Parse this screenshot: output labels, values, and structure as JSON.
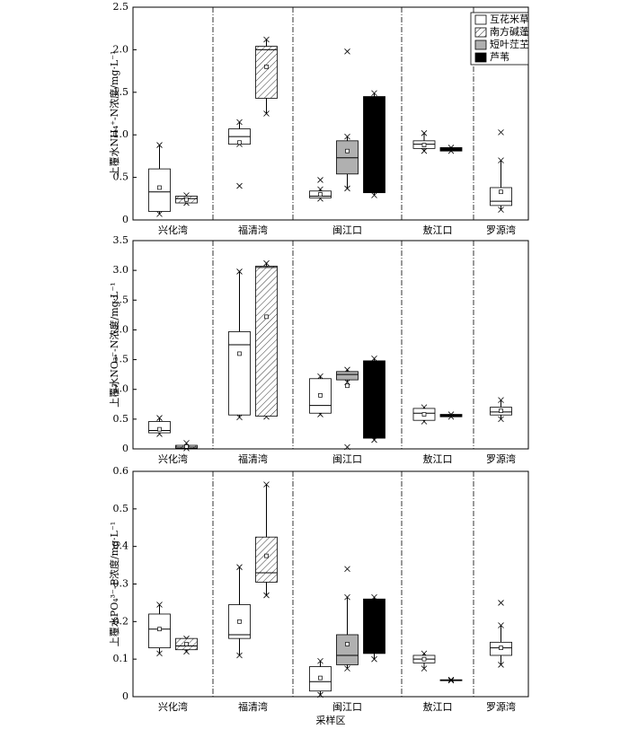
{
  "chart_data": [
    {
      "type": "box",
      "ylabel": "上覆水NH₄⁺-N浓度/mg·L⁻¹",
      "categories": [
        "兴化湾",
        "福清湾",
        "闽江口",
        "敖江口",
        "罗源湾"
      ],
      "ylim": [
        0,
        2.5
      ],
      "yticks": [
        0,
        0.5,
        {
          "value": 1,
          "label": "1.0"
        },
        1.5,
        {
          "value": 2,
          "label": "2.0"
        },
        2.5
      ],
      "legend": "upper right",
      "series": [
        {
          "name": "互花米草",
          "color": "#ffffff",
          "low": [
            0.07,
            0.89,
            0.25,
            0.81,
            0.12
          ],
          "q1": [
            0.1,
            0.89,
            0.26,
            0.84,
            0.17
          ],
          "median": [
            0.33,
            0.98,
            0.28,
            0.89,
            0.22
          ],
          "q3": [
            0.6,
            1.07,
            0.34,
            0.93,
            0.38
          ],
          "high": [
            0.88,
            1.15,
            0.36,
            1.02,
            0.7
          ],
          "mean": [
            0.38,
            0.91,
            0.3,
            0.88,
            0.33
          ],
          "outliers": [
            [],
            [
              0.4
            ],
            [
              0.47
            ],
            [],
            [
              1.03
            ]
          ]
        },
        {
          "name": "南方碱蓬",
          "color": "#ffffff",
          "pattern": "hatch",
          "low": [
            0.2,
            1.25,
            null,
            null,
            null
          ],
          "q1": [
            0.2,
            1.43,
            null,
            null,
            null
          ],
          "median": [
            0.25,
            2.0,
            null,
            null,
            null
          ],
          "q3": [
            0.28,
            2.04,
            null,
            null,
            null
          ],
          "high": [
            0.29,
            2.12,
            null,
            null,
            null
          ],
          "mean": [
            0.24,
            1.8,
            null,
            null,
            null
          ],
          "outliers": [
            [],
            [],
            null,
            null,
            null
          ]
        },
        {
          "name": "短叶茳芏",
          "color": "#b0b0b0",
          "low": [
            null,
            null,
            0.37,
            null,
            null
          ],
          "q1": [
            null,
            null,
            0.54,
            null,
            null
          ],
          "median": [
            null,
            null,
            0.73,
            null,
            null
          ],
          "q3": [
            null,
            null,
            0.93,
            null,
            null
          ],
          "high": [
            null,
            null,
            0.98,
            null,
            null
          ],
          "mean": [
            null,
            null,
            0.81,
            null,
            null
          ],
          "outliers": [
            null,
            null,
            [
              1.98
            ],
            null,
            null
          ]
        },
        {
          "name": "芦苇",
          "color": "#000000",
          "low": [
            null,
            null,
            0.29,
            0.81,
            null
          ],
          "q1": [
            null,
            null,
            0.32,
            0.81,
            null
          ],
          "median": [
            null,
            null,
            null,
            null,
            null
          ],
          "q3": [
            null,
            null,
            1.45,
            0.85,
            null
          ],
          "high": [
            null,
            null,
            1.49,
            0.85,
            null
          ],
          "mean": [
            null,
            null,
            null,
            null,
            null
          ],
          "outliers": [
            null,
            null,
            [],
            [],
            null
          ]
        }
      ]
    },
    {
      "type": "box",
      "ylabel": "上覆水NO₃⁻-N浓度/mg·L⁻¹",
      "categories": [
        "兴化湾",
        "福清湾",
        "闽江口",
        "敖江口",
        "罗源湾"
      ],
      "ylim": [
        0,
        3.5
      ],
      "yticks": [
        0,
        0.5,
        {
          "value": 1,
          "label": "1.0"
        },
        1.5,
        {
          "value": 2,
          "label": "2.0"
        },
        2.5,
        {
          "value": 3,
          "label": "3.0"
        },
        3.5
      ],
      "series": [
        {
          "color": "#ffffff",
          "low": [
            0.25,
            0.53,
            0.58,
            0.46,
            0.5
          ],
          "q1": [
            0.27,
            0.57,
            0.6,
            0.48,
            0.57
          ],
          "median": [
            0.31,
            1.75,
            0.73,
            0.6,
            0.62
          ],
          "q3": [
            0.46,
            1.97,
            1.18,
            0.68,
            0.7
          ],
          "high": [
            0.52,
            2.98,
            1.22,
            0.7,
            0.82
          ],
          "mean": [
            0.33,
            1.6,
            0.9,
            0.58,
            0.64
          ],
          "outliers": [
            [],
            [],
            [],
            [],
            []
          ]
        },
        {
          "color": "#ffffff",
          "pattern": "hatch",
          "low": [
            0.01,
            0.54,
            null,
            null,
            null
          ],
          "q1": [
            0.01,
            0.55,
            null,
            null,
            null
          ],
          "median": [
            0.03,
            3.05,
            null,
            null,
            null
          ],
          "q3": [
            0.06,
            3.07,
            null,
            null,
            null
          ],
          "high": [
            0.1,
            3.12,
            null,
            null,
            null
          ],
          "mean": [
            0.04,
            2.22,
            null,
            null,
            null
          ],
          "outliers": [
            [],
            [],
            null,
            null,
            null
          ]
        },
        {
          "color": "#b0b0b0",
          "low": [
            null,
            null,
            1.12,
            null,
            null
          ],
          "q1": [
            null,
            null,
            1.16,
            null,
            null
          ],
          "median": [
            null,
            null,
            1.25,
            null,
            null
          ],
          "q3": [
            null,
            null,
            1.3,
            null,
            null
          ],
          "high": [
            null,
            null,
            1.33,
            null,
            null
          ],
          "mean": [
            null,
            null,
            1.06,
            null,
            null
          ],
          "outliers": [
            null,
            null,
            [
              0.03
            ],
            null,
            null
          ]
        },
        {
          "color": "#000000",
          "low": [
            null,
            null,
            0.15,
            0.54,
            null
          ],
          "q1": [
            null,
            null,
            0.18,
            0.54,
            null
          ],
          "median": [
            null,
            null,
            null,
            null,
            null
          ],
          "q3": [
            null,
            null,
            1.48,
            0.58,
            null
          ],
          "high": [
            null,
            null,
            1.52,
            0.58,
            null
          ],
          "mean": [
            null,
            null,
            null,
            null,
            null
          ],
          "outliers": [
            null,
            null,
            [],
            [],
            null
          ]
        }
      ]
    },
    {
      "type": "box",
      "ylabel": "上覆水PO₄³⁻-P浓度/mg·L⁻¹",
      "xlabel": "采样区",
      "categories": [
        "兴化湾",
        "福清湾",
        "闽江口",
        "敖江口",
        "罗源湾"
      ],
      "ylim": [
        0,
        0.6
      ],
      "yticks": [
        0,
        0.1,
        0.2,
        0.3,
        0.4,
        0.5,
        0.6
      ],
      "series": [
        {
          "color": "#ffffff",
          "low": [
            0.115,
            0.11,
            0.005,
            0.075,
            0.085
          ],
          "q1": [
            0.13,
            0.155,
            0.015,
            0.09,
            0.11
          ],
          "median": [
            0.18,
            0.165,
            0.04,
            0.1,
            0.13
          ],
          "q3": [
            0.22,
            0.245,
            0.08,
            0.11,
            0.145
          ],
          "high": [
            0.245,
            0.345,
            0.095,
            0.115,
            0.19
          ],
          "mean": [
            0.18,
            0.2,
            0.05,
            0.1,
            0.13
          ],
          "outliers": [
            [],
            [],
            [],
            [],
            [
              0.25
            ]
          ]
        },
        {
          "color": "#ffffff",
          "pattern": "hatch",
          "low": [
            0.12,
            0.27,
            null,
            null,
            null
          ],
          "q1": [
            0.125,
            0.305,
            null,
            null,
            null
          ],
          "median": [
            0.135,
            0.33,
            null,
            null,
            null
          ],
          "q3": [
            0.155,
            0.425,
            null,
            null,
            null
          ],
          "high": [
            0.155,
            0.565,
            null,
            null,
            null
          ],
          "mean": [
            0.14,
            0.375,
            null,
            null,
            null
          ],
          "outliers": [
            [],
            [],
            null,
            null,
            null
          ]
        },
        {
          "color": "#b0b0b0",
          "low": [
            null,
            null,
            0.075,
            null,
            null
          ],
          "q1": [
            null,
            null,
            0.085,
            null,
            null
          ],
          "median": [
            null,
            null,
            0.11,
            null,
            null
          ],
          "q3": [
            null,
            null,
            0.165,
            null,
            null
          ],
          "high": [
            null,
            null,
            0.265,
            null,
            null
          ],
          "mean": [
            null,
            null,
            0.14,
            null,
            null
          ],
          "outliers": [
            null,
            null,
            [
              0.34
            ],
            null,
            null
          ]
        },
        {
          "color": "#000000",
          "low": [
            null,
            null,
            0.1,
            0.043,
            null
          ],
          "q1": [
            null,
            null,
            0.115,
            0.043,
            null
          ],
          "median": [
            null,
            null,
            null,
            null,
            null
          ],
          "q3": [
            null,
            null,
            0.26,
            0.045,
            null
          ],
          "high": [
            null,
            null,
            0.265,
            0.045,
            null
          ],
          "mean": [
            null,
            null,
            null,
            null,
            null
          ],
          "outliers": [
            null,
            null,
            [],
            [],
            null
          ]
        }
      ]
    }
  ]
}
